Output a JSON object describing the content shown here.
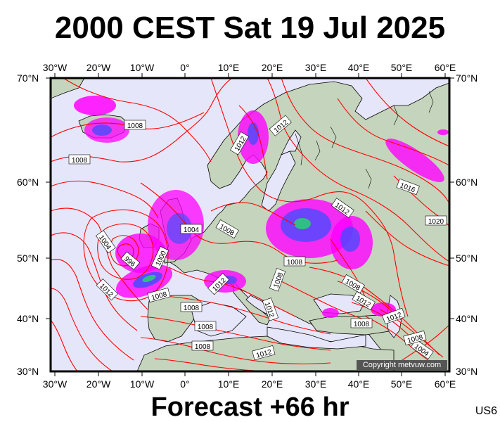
{
  "title": "2000 CEST Sat 19 Jul 2025",
  "subtitle": "Forecast +66 hr",
  "model_code": "US6",
  "copyright": "Copyright metvuw.com",
  "lon_labels": [
    "30°W",
    "20°W",
    "10°W",
    "0°",
    "10°E",
    "20°E",
    "30°E",
    "40°E",
    "50°E",
    "60°E"
  ],
  "lat_labels": [
    "70°N",
    "60°N",
    "50°N",
    "40°N",
    "30°N"
  ],
  "colors": {
    "ocean": "#e6e6fa",
    "land": "#c5d4bc",
    "isobar": "#ff0000",
    "coast": "#000000",
    "precip_light": "#ff00ff",
    "precip_mid": "#3050ff",
    "precip_high": "#22dd66"
  },
  "isobar_labels": [
    "1008",
    "1008",
    "1012",
    "1012",
    "1016",
    "1020",
    "1004",
    "1008",
    "1004",
    "996",
    "1000",
    "1008",
    "1012",
    "1008",
    "1012",
    "1012",
    "1008",
    "1008",
    "1012",
    "1008",
    "1012",
    "1008",
    "1008",
    "1008",
    "1012",
    "1004",
    "1012",
    "1008",
    "1012"
  ]
}
